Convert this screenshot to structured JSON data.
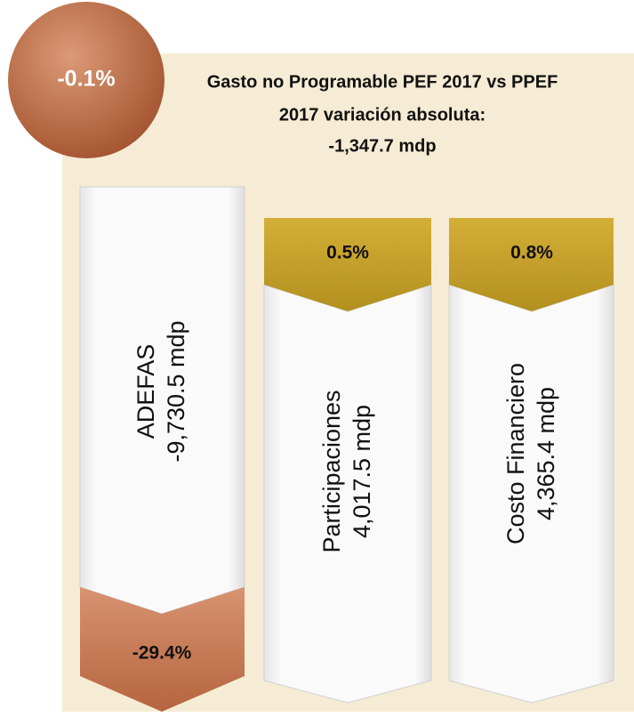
{
  "badge": "-0.1%",
  "title": [
    "Gasto no Programable PEF 2017 vs PPEF",
    "2017 variación absoluta:",
    "-1,347.7 mdp"
  ],
  "columns": [
    {
      "name": "ADEFAS",
      "amount": "-9,730.5 mdp",
      "change": "-29.4%"
    },
    {
      "name": "Participaciones",
      "amount": "4,017.5 mdp",
      "change": "0.5%"
    },
    {
      "name": "Costo Financiero",
      "amount": "4,365.4 mdp",
      "change": "0.8%"
    }
  ]
}
